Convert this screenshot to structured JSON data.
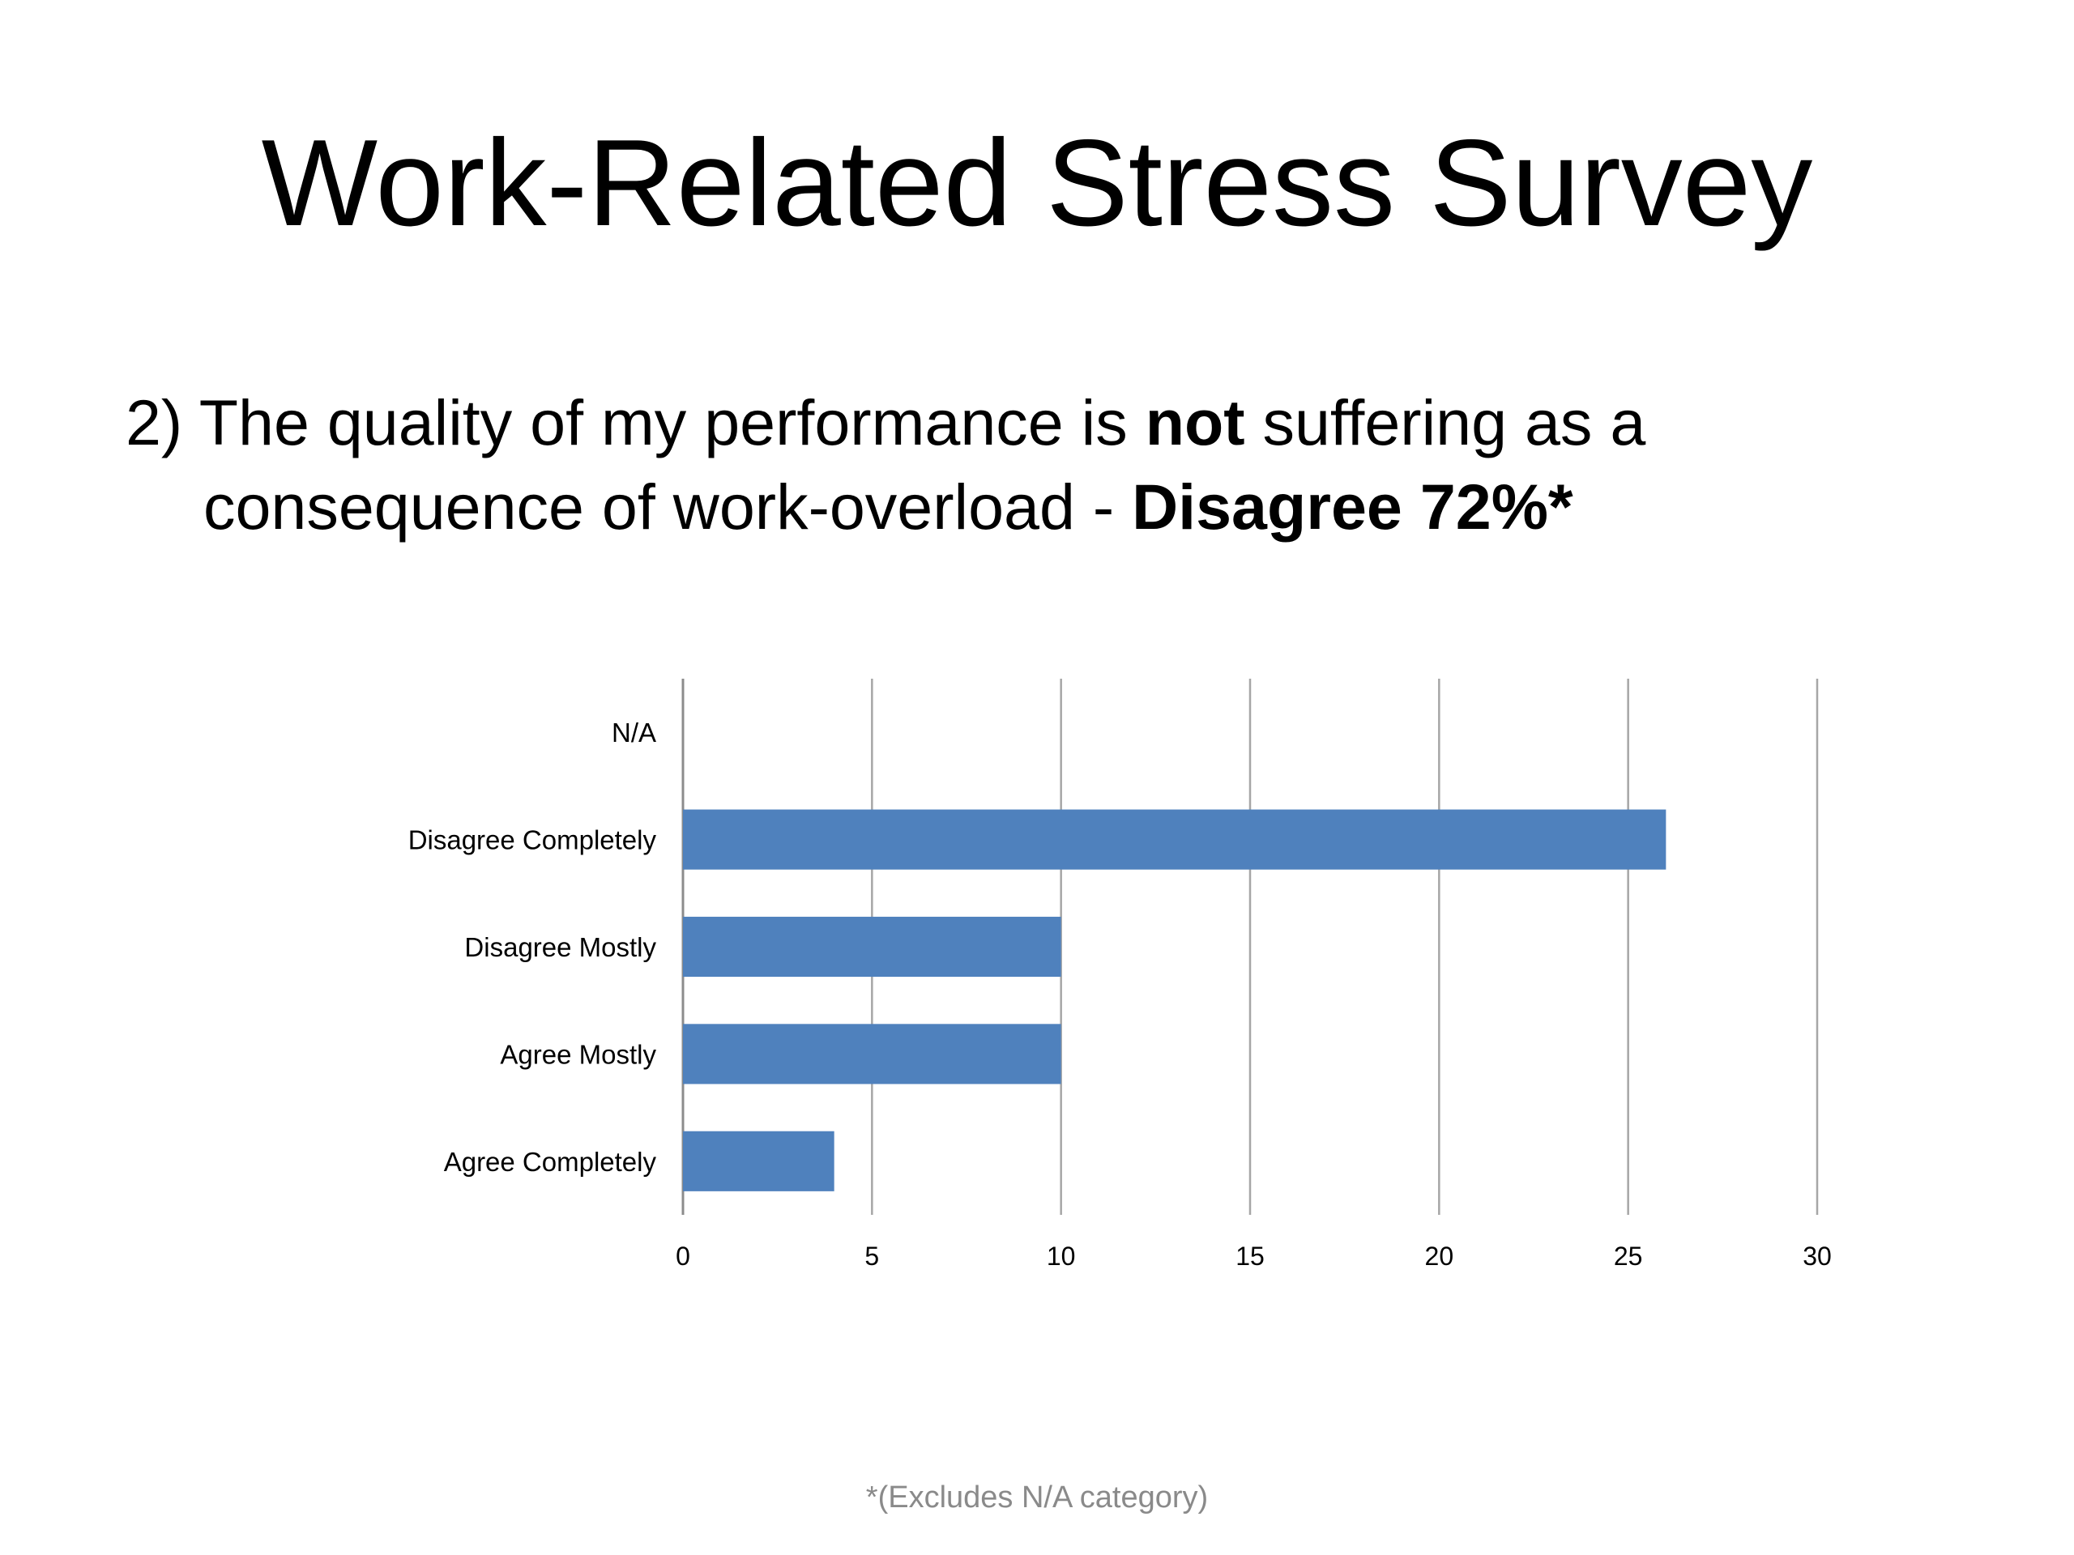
{
  "slide": {
    "title": "Work-Related Stress Survey",
    "question": {
      "prefix": "2) The quality of my performance is ",
      "bold1": "not",
      "middle": " suffering as a",
      "line2": "consequence of work-overload - ",
      "bold2": "Disagree 72%*"
    },
    "footnote": "*(Excludes N/A category)"
  },
  "chart_data": {
    "type": "bar",
    "orientation": "horizontal",
    "categories": [
      "N/A",
      "Disagree Completely",
      "Disagree Mostly",
      "Agree Mostly",
      "Agree Completely"
    ],
    "values": [
      0,
      26,
      10,
      10,
      4
    ],
    "xticks": [
      0,
      5,
      10,
      15,
      20,
      25,
      30
    ],
    "xlim": [
      0,
      30
    ],
    "bar_color": "#4f81bd",
    "grid": true,
    "legend": "none"
  }
}
